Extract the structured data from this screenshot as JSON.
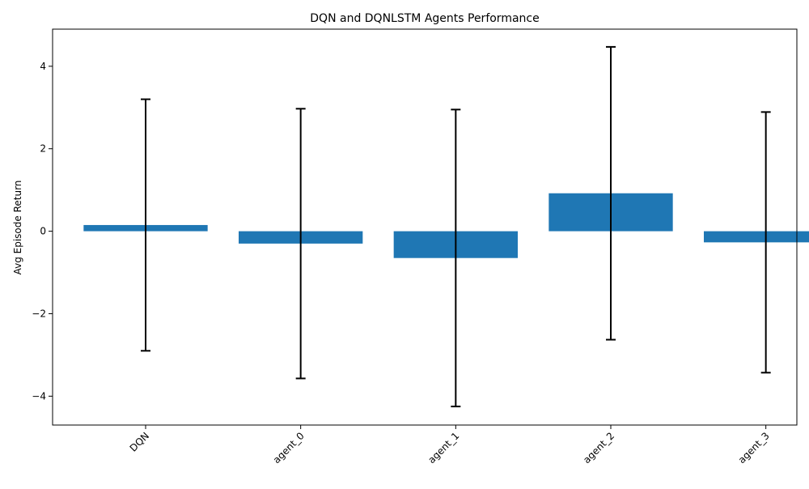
{
  "chart_data": {
    "type": "bar",
    "title": "DQN and DQNLSTM Agents Performance",
    "xlabel": "",
    "ylabel": "Avg Episode Return",
    "categories": [
      "DQN",
      "agent_0",
      "agent_1",
      "agent_2",
      "agent_3"
    ],
    "values": [
      0.15,
      -0.3,
      -0.65,
      0.92,
      -0.27
    ],
    "error": [
      3.05,
      3.27,
      3.6,
      3.55,
      3.16
    ],
    "ylim": [
      -4.7,
      4.9
    ],
    "yticks": [
      4,
      2,
      0,
      -2,
      -4
    ],
    "ytick_labels": [
      "4",
      "2",
      "0",
      "−2",
      "−4"
    ],
    "grid": false,
    "legend": "none",
    "colors": {
      "bar": "#1f77b4",
      "error_bar": "#000000"
    }
  }
}
